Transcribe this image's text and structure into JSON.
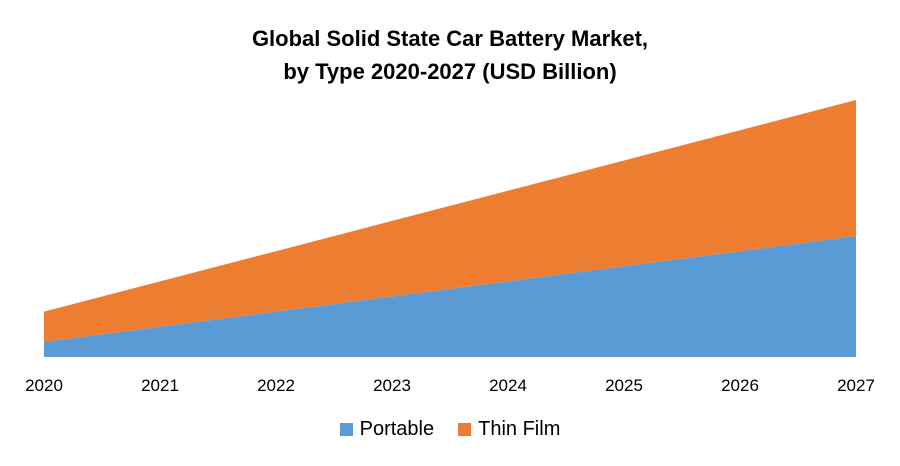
{
  "chart_data": {
    "type": "area",
    "stacked": true,
    "title": "Global Solid State Car Battery Market,",
    "subtitle": "by Type 2020-2027 (USD Billion)",
    "x": [
      "2020",
      "2021",
      "2022",
      "2023",
      "2024",
      "2025",
      "2026",
      "2027"
    ],
    "series": [
      {
        "name": "Portable",
        "color": "#5b9bd5",
        "values": [
          1.0,
          2.0,
          3.0,
          4.0,
          5.0,
          6.0,
          7.0,
          8.0
        ]
      },
      {
        "name": "Thin Film",
        "color": "#ed7d31",
        "values": [
          2.0,
          3.0,
          4.0,
          5.0,
          6.0,
          7.0,
          8.0,
          9.0
        ]
      }
    ],
    "ylim": [
      0,
      17
    ],
    "grid": false,
    "legend_position": "bottom"
  }
}
